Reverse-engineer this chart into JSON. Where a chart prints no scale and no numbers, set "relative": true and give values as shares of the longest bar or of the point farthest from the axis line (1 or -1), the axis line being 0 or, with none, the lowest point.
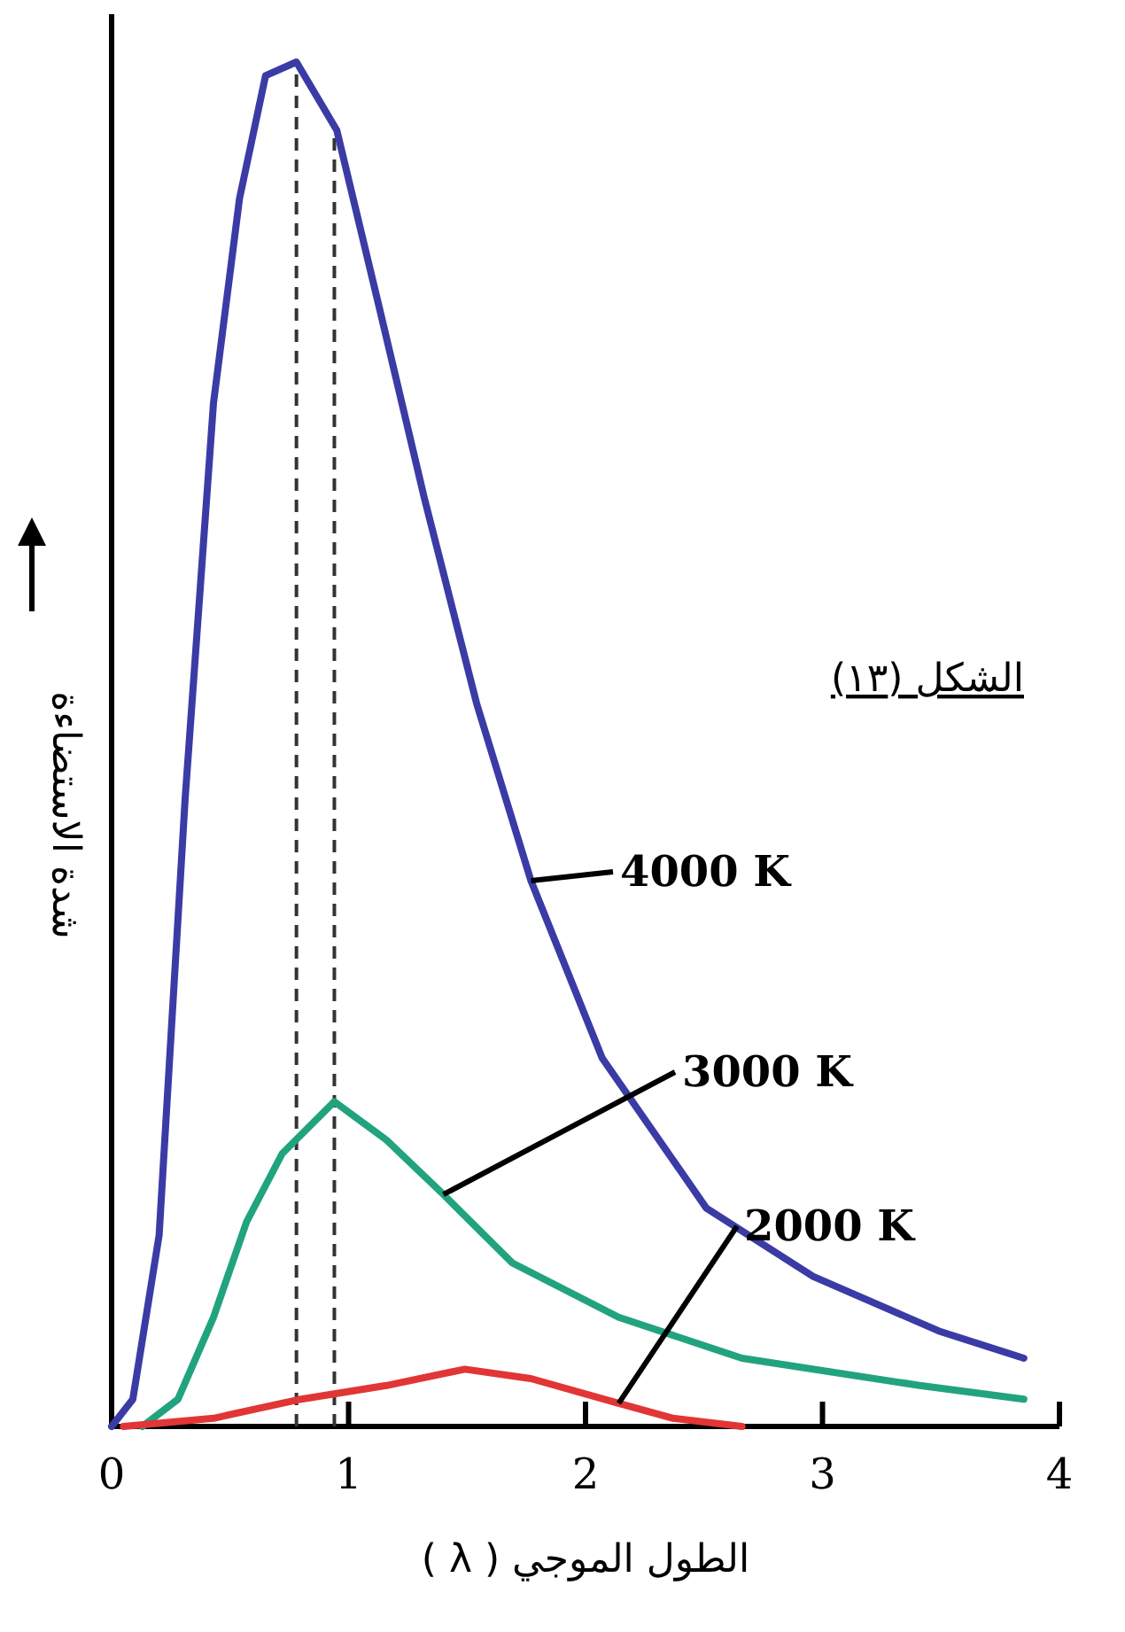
{
  "chart_data": {
    "type": "line",
    "title": "الشكل (١٣)",
    "xlabel": "الطول الموجي ( λ )",
    "ylabel": "شدة الاستضاءة",
    "relative": true,
    "xlim": [
      0,
      4
    ],
    "xticks": [
      0,
      1,
      2,
      3,
      4
    ],
    "marker": "none",
    "line_style": "solid",
    "series": [
      {
        "name": "4000 K",
        "color": "#3b3ba6",
        "x": [
          0,
          0.09,
          0.2,
          0.31,
          0.43,
          0.54,
          0.65,
          0.78,
          0.95,
          1.13,
          1.32,
          1.54,
          1.77,
          2.07,
          2.51,
          2.96,
          3.49,
          3.85
        ],
        "values": [
          0,
          0.02,
          0.14,
          0.46,
          0.75,
          0.9,
          0.99,
          1,
          0.95,
          0.82,
          0.68,
          0.53,
          0.4,
          0.27,
          0.16,
          0.11,
          0.07,
          0.05
        ]
      },
      {
        "name": "3000 K",
        "color": "#22a37f",
        "x": [
          0.13,
          0.28,
          0.43,
          0.57,
          0.72,
          0.94,
          1.16,
          1.4,
          1.69,
          2.14,
          2.66,
          3.41,
          3.85
        ],
        "values": [
          0,
          0.02,
          0.08,
          0.15,
          0.2,
          0.238,
          0.21,
          0.17,
          0.12,
          0.08,
          0.05,
          0.03,
          0.02
        ]
      },
      {
        "name": "2000 K",
        "color": "#e23535",
        "x": [
          0.05,
          0.43,
          0.8,
          1.16,
          1.49,
          1.77,
          2.14,
          2.37,
          2.66
        ],
        "values": [
          0,
          0.006,
          0.02,
          0.03,
          0.042,
          0.035,
          0.017,
          0.006,
          0
        ]
      }
    ],
    "ref_lines": [
      {
        "axis": "x",
        "value": 0.78,
        "line_style": "dashed",
        "color": "#333333"
      },
      {
        "axis": "x",
        "value": 0.94,
        "line_style": "dashed",
        "color": "#333333"
      }
    ]
  }
}
